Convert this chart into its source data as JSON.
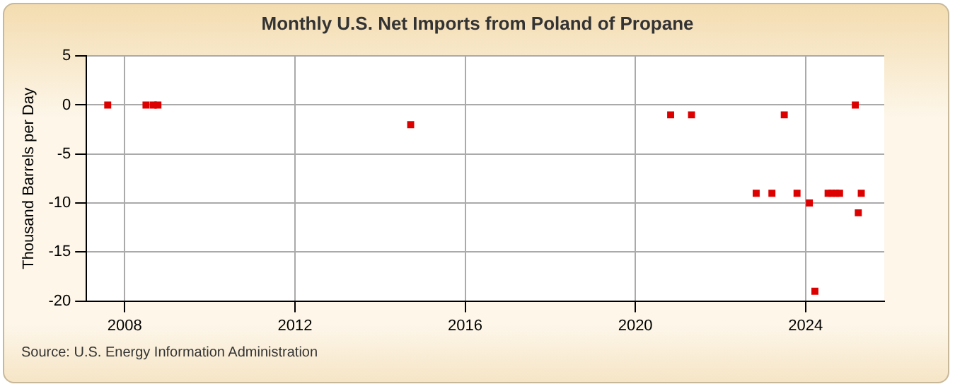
{
  "chart_data": {
    "type": "scatter",
    "title": "Monthly U.S. Net Imports from Poland of Propane",
    "ylabel": "Thousand Barrels per Day",
    "annotations": [
      "Source: U.S. Energy Information Administration"
    ],
    "x": [
      2007.6,
      2008.5,
      2008.67,
      2008.78,
      2014.72,
      2020.83,
      2021.32,
      2022.84,
      2023.21,
      2023.5,
      2023.8,
      2024.09,
      2024.22,
      2024.53,
      2024.62,
      2024.71,
      2024.8,
      2025.17,
      2025.24,
      2025.31
    ],
    "series": [
      {
        "color": "#dd0000",
        "values": [
          0,
          0,
          0,
          0,
          -2,
          -1,
          -1,
          -9,
          -9,
          -1,
          -9,
          -10,
          -19,
          -9,
          -9,
          -9,
          -9,
          0,
          -11,
          -9
        ]
      }
    ],
    "xlim": [
      2007.1,
      2025.85
    ],
    "xticks": [
      2008,
      2012,
      2016,
      2020,
      2024
    ],
    "ylim": [
      -20,
      5
    ],
    "yticks": [
      -20,
      -15,
      -10,
      -5,
      0,
      5
    ],
    "grid": true,
    "legend": false,
    "marker": "square"
  }
}
